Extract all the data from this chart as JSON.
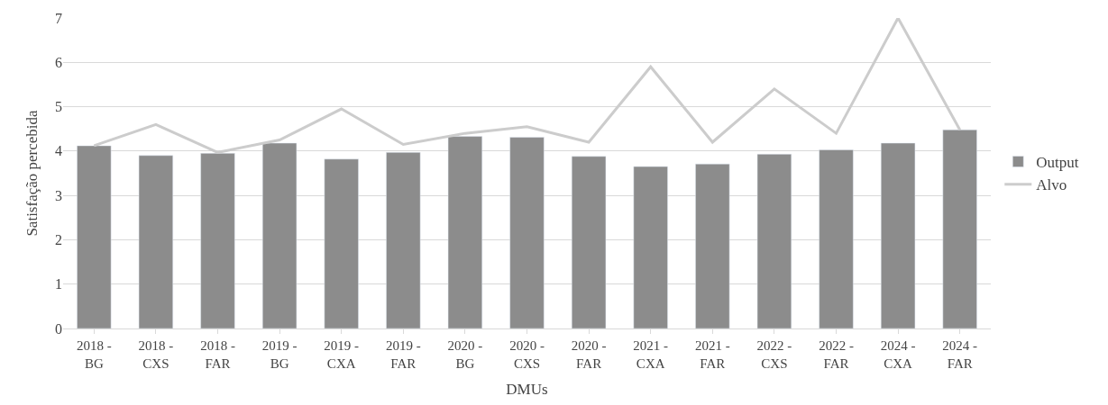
{
  "chart_data": {
    "type": "bar",
    "xlabel": "DMUs",
    "ylabel": "Satisfação percebida",
    "categories": [
      "2018 -\nBG",
      "2018 -\nCXS",
      "2018 -\nFAR",
      "2019 -\nBG",
      "2019 -\nCXA",
      "2019 -\nFAR",
      "2020 -\nBG",
      "2020 -\nCXS",
      "2020 -\nFAR",
      "2021 -\nCXA",
      "2021 -\nFAR",
      "2022 -\nCXS",
      "2022 -\nFAR",
      "2024 -\nCXA",
      "2024 -\nFAR"
    ],
    "series": [
      {
        "name": "Output",
        "color": "#8c8c8c",
        "values": [
          4.12,
          3.9,
          3.95,
          4.18,
          3.82,
          3.97,
          4.33,
          4.31,
          3.88,
          3.65,
          3.71,
          3.93,
          4.03,
          4.18,
          4.48
        ]
      },
      {
        "name": "Alvo",
        "type": "line",
        "color": "#cccccc",
        "values": [
          4.12,
          4.6,
          3.97,
          4.25,
          4.95,
          4.15,
          4.4,
          4.55,
          4.2,
          5.9,
          4.2,
          5.4,
          4.4,
          7.0,
          4.48
        ]
      }
    ],
    "ylim": [
      0,
      7
    ],
    "yticks": [
      0,
      1,
      2,
      3,
      4,
      5,
      6,
      7
    ],
    "grid": "y",
    "legend": "right",
    "marker": "none",
    "line_style": "solid"
  }
}
